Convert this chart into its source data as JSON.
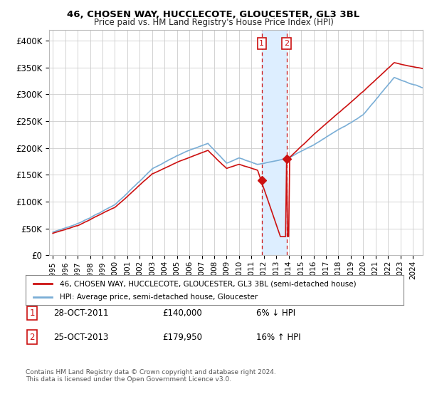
{
  "title": "46, CHOSEN WAY, HUCCLECOTE, GLOUCESTER, GL3 3BL",
  "subtitle": "Price paid vs. HM Land Registry's House Price Index (HPI)",
  "legend_line1": "46, CHOSEN WAY, HUCCLECOTE, GLOUCESTER, GL3 3BL (semi-detached house)",
  "legend_line2": "HPI: Average price, semi-detached house, Gloucester",
  "footer": "Contains HM Land Registry data © Crown copyright and database right 2024.\nThis data is licensed under the Open Government Licence v3.0.",
  "transaction1_date": "28-OCT-2011",
  "transaction1_price": "£140,000",
  "transaction1_hpi": "6% ↓ HPI",
  "transaction1_year": 2011.83,
  "transaction1_value": 140000,
  "transaction2_date": "25-OCT-2013",
  "transaction2_price": "£179,950",
  "transaction2_hpi": "16% ↑ HPI",
  "transaction2_year": 2013.83,
  "transaction2_value": 179950,
  "hpi_color": "#7aaed6",
  "price_color": "#cc1111",
  "highlight_color": "#ddeeff",
  "box_color": "#cc1111",
  "ylim": [
    0,
    420000
  ],
  "yticks": [
    0,
    50000,
    100000,
    150000,
    200000,
    250000,
    300000,
    350000,
    400000
  ],
  "ytick_labels": [
    "£0",
    "£50K",
    "£100K",
    "£150K",
    "£200K",
    "£250K",
    "£300K",
    "£350K",
    "£400K"
  ],
  "xlim_start": 1994.7,
  "xlim_end": 2024.8,
  "figwidth": 6.0,
  "figheight": 5.6,
  "dpi": 100
}
